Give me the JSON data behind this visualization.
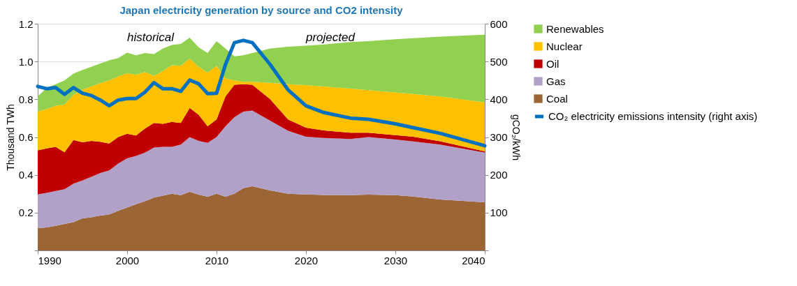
{
  "chart_data": {
    "type": "area",
    "title": "Japan electricity generation by source and CO2 intensity",
    "ylabel": "Thousand TWh",
    "y2label": "gCO₂/kWh",
    "x": [
      1990,
      1991,
      1992,
      1993,
      1994,
      1995,
      1996,
      1997,
      1998,
      1999,
      2000,
      2001,
      2002,
      2003,
      2004,
      2005,
      2006,
      2007,
      2008,
      2009,
      2010,
      2011,
      2012,
      2013,
      2014,
      2016,
      2018,
      2020,
      2022,
      2025,
      2027,
      2030,
      2032,
      2035,
      2040
    ],
    "stacked": true,
    "series": [
      {
        "name": "Coal",
        "color": "#9b6535",
        "values": [
          0.118,
          0.122,
          0.13,
          0.14,
          0.15,
          0.17,
          0.175,
          0.185,
          0.19,
          0.21,
          0.227,
          0.245,
          0.26,
          0.28,
          0.29,
          0.3,
          0.293,
          0.31,
          0.295,
          0.284,
          0.3,
          0.284,
          0.3,
          0.33,
          0.34,
          0.318,
          0.3,
          0.296,
          0.294,
          0.293,
          0.295,
          0.293,
          0.285,
          0.27,
          0.255
        ]
      },
      {
        "name": "Gas",
        "color": "#b1a0c7",
        "values": [
          0.179,
          0.183,
          0.185,
          0.184,
          0.204,
          0.2,
          0.215,
          0.225,
          0.234,
          0.25,
          0.26,
          0.255,
          0.258,
          0.265,
          0.258,
          0.248,
          0.267,
          0.29,
          0.285,
          0.286,
          0.3,
          0.373,
          0.405,
          0.405,
          0.4,
          0.369,
          0.333,
          0.306,
          0.301,
          0.297,
          0.305,
          0.294,
          0.292,
          0.29,
          0.263
        ]
      },
      {
        "name": "Oil",
        "color": "#c00000",
        "values": [
          0.233,
          0.235,
          0.233,
          0.196,
          0.23,
          0.202,
          0.19,
          0.165,
          0.142,
          0.14,
          0.131,
          0.108,
          0.127,
          0.13,
          0.122,
          0.132,
          0.115,
          0.154,
          0.138,
          0.087,
          0.093,
          0.158,
          0.172,
          0.145,
          0.137,
          0.113,
          0.06,
          0.048,
          0.04,
          0.033,
          0.023,
          0.023,
          0.025,
          0.018,
          0.006
        ]
      },
      {
        "name": "Nuclear",
        "color": "#ffc000",
        "values": [
          0.206,
          0.208,
          0.218,
          0.252,
          0.239,
          0.278,
          0.289,
          0.31,
          0.334,
          0.32,
          0.32,
          0.322,
          0.299,
          0.249,
          0.28,
          0.3,
          0.303,
          0.261,
          0.254,
          0.285,
          0.285,
          0.095,
          0.023,
          0.013,
          0.016,
          0.087,
          0.187,
          0.225,
          0.233,
          0.234,
          0.225,
          0.226,
          0.226,
          0.237,
          0.26
        ]
      },
      {
        "name": "Renewables",
        "color": "#92d050",
        "values": [
          0.079,
          0.112,
          0.114,
          0.128,
          0.113,
          0.105,
          0.103,
          0.105,
          0.106,
          0.098,
          0.109,
          0.103,
          0.101,
          0.115,
          0.119,
          0.107,
          0.115,
          0.111,
          0.103,
          0.103,
          0.13,
          0.159,
          0.127,
          0.14,
          0.152,
          0.182,
          0.198,
          0.209,
          0.222,
          0.246,
          0.26,
          0.282,
          0.295,
          0.317,
          0.358
        ]
      },
      {
        "name": "CO₂ electricity emissions intensity (right axis)",
        "type": "line",
        "axis": "y2",
        "color": "#0070c0",
        "values": [
          434,
          428,
          431,
          413,
          431,
          416,
          410,
          398,
          383,
          398,
          402,
          402,
          419,
          444,
          428,
          428,
          421,
          451,
          441,
          415,
          416,
          492,
          550,
          556,
          550,
          492,
          425,
          383,
          365,
          350,
          347,
          335,
          325,
          310,
          277
        ]
      }
    ],
    "xlim": [
      1990,
      2040
    ],
    "xticks": [
      1990,
      2000,
      2010,
      2020,
      2030,
      2040
    ],
    "ylim": [
      0,
      1.2
    ],
    "yticks": [
      {
        "value": 0,
        "label": null
      },
      0.2,
      0.4,
      0.6,
      0.8,
      {
        "value": 1,
        "label": "1.0"
      },
      1.2
    ],
    "y2lim": [
      0,
      600
    ],
    "y2ticks": [
      {
        "value": 0,
        "label": null
      },
      100,
      200,
      300,
      400,
      500,
      600
    ],
    "grid": "y",
    "legend": "right",
    "annotations": [
      "historical",
      "projected"
    ]
  }
}
